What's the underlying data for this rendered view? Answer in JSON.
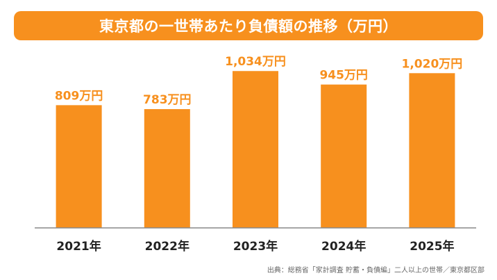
{
  "title": "東京都の一世帯あたり負債額の推移（万円）",
  "source_note": "出典：総務省「家計調査 貯蓄・負債編」二人以上の世帯／東京都区部",
  "colors": {
    "accent": "#F7901E",
    "axis": "#888888",
    "text": "#222222"
  },
  "chart_data": {
    "type": "bar",
    "title": "東京都の一世帯あたり負債額の推移（万円）",
    "categories": [
      "2021年",
      "2022年",
      "2023年",
      "2024年",
      "2025年"
    ],
    "values": [
      809,
      783,
      1034,
      945,
      1020
    ],
    "value_labels": [
      "809万円",
      "783万円",
      "1,034万円",
      "945万円",
      "1,020万円"
    ],
    "ylim": [
      0,
      1200
    ],
    "grid": false,
    "legend": "none"
  }
}
